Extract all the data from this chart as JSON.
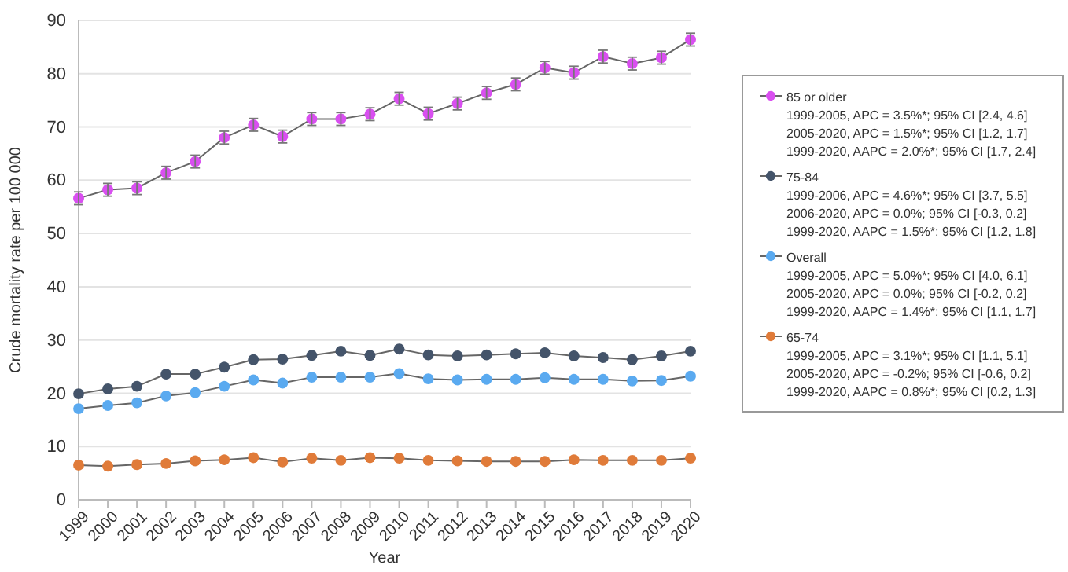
{
  "chart_data": {
    "type": "line",
    "xlabel": "Year",
    "ylabel": "Crude mortality rate per 100 000",
    "categories": [
      "1999",
      "2000",
      "2001",
      "2002",
      "2003",
      "2004",
      "2005",
      "2006",
      "2007",
      "2008",
      "2009",
      "2010",
      "2011",
      "2012",
      "2013",
      "2014",
      "2015",
      "2016",
      "2017",
      "2018",
      "2019",
      "2020"
    ],
    "series": [
      {
        "name": "85 or older",
        "color": "#d94ff0",
        "values": [
          56.6,
          58.2,
          58.5,
          61.4,
          63.5,
          68.0,
          70.4,
          68.2,
          71.5,
          71.5,
          72.4,
          75.3,
          72.5,
          74.4,
          76.4,
          78.0,
          81.1,
          80.2,
          83.2,
          81.9,
          83.0,
          86.4
        ],
        "errors": [
          1.2,
          1.2,
          1.2,
          1.2,
          1.2,
          1.2,
          1.2,
          1.2,
          1.2,
          1.2,
          1.2,
          1.2,
          1.2,
          1.2,
          1.2,
          1.2,
          1.2,
          1.2,
          1.2,
          1.2,
          1.2,
          1.2
        ]
      },
      {
        "name": "75-84",
        "color": "#44546a",
        "values": [
          19.9,
          20.8,
          21.3,
          23.6,
          23.6,
          24.9,
          26.3,
          26.4,
          27.1,
          27.9,
          27.1,
          28.3,
          27.2,
          27.0,
          27.2,
          27.4,
          27.6,
          27.0,
          26.7,
          26.3,
          27.0,
          27.9
        ]
      },
      {
        "name": "Overall",
        "color": "#5aaaf0",
        "values": [
          17.1,
          17.7,
          18.2,
          19.5,
          20.1,
          21.3,
          22.5,
          21.9,
          23.0,
          23.0,
          23.0,
          23.7,
          22.7,
          22.5,
          22.6,
          22.6,
          22.9,
          22.6,
          22.6,
          22.3,
          22.4,
          23.2
        ]
      },
      {
        "name": "65-74",
        "color": "#e07b39",
        "values": [
          6.5,
          6.3,
          6.6,
          6.8,
          7.3,
          7.5,
          7.9,
          7.1,
          7.8,
          7.4,
          7.9,
          7.8,
          7.4,
          7.3,
          7.2,
          7.2,
          7.2,
          7.5,
          7.4,
          7.4,
          7.4,
          7.8
        ]
      }
    ],
    "annotations": [
      "1999-2005, APC = 3.5%*; 95% CI [2.4, 4.6]",
      "2005-2020, APC = 1.5%*; 95% CI [1.2, 1.7]",
      "1999-2020, AAPC = 2.0%*; 95% CI [1.7, 2.4]",
      "1999-2006, APC = 4.6%*; 95% CI [3.7, 5.5]",
      "2006-2020, APC = 0.0%; 95% CI [-0.3, 0.2]",
      "1999-2020, AAPC = 1.5%*; 95% CI [1.2, 1.8]",
      "1999-2005, APC = 5.0%*; 95% CI [4.0, 6.1]",
      "2005-2020, APC = 0.0%; 95% CI [-0.2, 0.2]",
      "1999-2020, AAPC = 1.4%*; 95% CI [1.1, 1.7]",
      "1999-2005, APC = 3.1%*; 95% CI [1.1, 5.1]",
      "2005-2020, APC = -0.2%; 95% CI [-0.6, 0.2]",
      "1999-2020, AAPC = 0.8%*; 95% CI [0.2, 1.3]"
    ],
    "ylim": [
      0,
      90
    ],
    "yticks": [
      0,
      10,
      20,
      30,
      40,
      50,
      60,
      70,
      80,
      90
    ],
    "grid": "y",
    "legend": "right",
    "marker": "circle",
    "line_style": "solid"
  }
}
